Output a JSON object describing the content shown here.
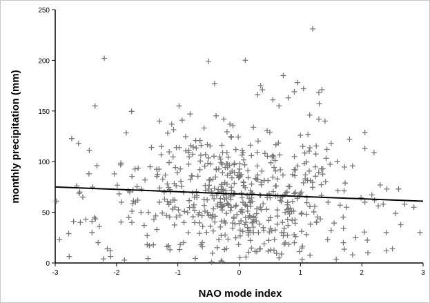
{
  "chart_data": {
    "type": "scatter",
    "title": "",
    "xlabel": "NAO mode index",
    "ylabel": "monthly precipitation (mm)",
    "xlim": [
      -3,
      3
    ],
    "ylim": [
      0,
      250
    ],
    "xticks": [
      -3,
      -2,
      -1,
      0,
      1,
      2,
      3
    ],
    "yticks": [
      0,
      50,
      100,
      150,
      200,
      250
    ],
    "marker": "plus",
    "marker_color": "#777777",
    "grid": false,
    "legend": "none",
    "points_x": [
      -2.98,
      -2.93,
      -2.78,
      -2.65,
      -2.59,
      -2.4,
      -2.36,
      -2.32,
      -2.28,
      -2.1,
      -2.62,
      -2.45,
      -2.35,
      -2.2,
      -1.92,
      -1.55,
      -1.5,
      -1.48,
      -1.43,
      -1.3,
      -1.1,
      -0.98,
      -0.8,
      -0.62,
      -0.55,
      -0.5,
      -0.4,
      -0.25,
      -0.15,
      -0.2,
      0.1,
      0.3,
      0.35,
      0.38,
      0.55,
      0.65,
      0.72,
      0.8,
      0.9,
      0.95,
      1.05,
      1.15,
      1.2,
      1.3,
      1.35,
      1.4,
      0.05,
      0.2,
      0.5,
      1.0,
      1.5,
      1.6,
      1.8,
      2.05,
      2.2,
      2.3,
      2.6,
      2.7,
      2.95,
      2.5,
      2.1,
      1.9,
      1.7,
      -2.7,
      -2.5,
      -2.4,
      -2.6,
      -2.55,
      -1.75,
      -1.6,
      -1.3,
      -1.05,
      -0.75,
      -0.35,
      0.15,
      0.45,
      0.75,
      1.1,
      1.45,
      1.75,
      2.05,
      2.35,
      2.55,
      2.85,
      -2.15,
      -1.15,
      0.65,
      1.85,
      -2.3,
      -1.5,
      -0.6,
      0.9,
      2.4,
      -1.8,
      -0.9,
      1.5,
      2.4
    ],
    "points_y": [
      61,
      23,
      29,
      76,
      40,
      30,
      45,
      96,
      36,
      12,
      118,
      88,
      155,
      202,
      60,
      37,
      27,
      50,
      114,
      140,
      137,
      155,
      147,
      116,
      107,
      199,
      177,
      142,
      137,
      109,
      200,
      166,
      175,
      171,
      161,
      155,
      185,
      163,
      169,
      178,
      172,
      146,
      231,
      168,
      171,
      140,
      111,
      106,
      129,
      126,
      118,
      100,
      122,
      113,
      109,
      77,
      73,
      58,
      30,
      14,
      10,
      25,
      20,
      41,
      43,
      41,
      70,
      65,
      40,
      50,
      60,
      62,
      55,
      58,
      45,
      53,
      50,
      48,
      60,
      55,
      60,
      58,
      49,
      55,
      14,
      17,
      5,
      8,
      20,
      18,
      16,
      20,
      30,
      45,
      40,
      32,
      12
    ],
    "trendline": {
      "x": [
        -3,
        3
      ],
      "y": [
        75,
        61
      ]
    }
  }
}
